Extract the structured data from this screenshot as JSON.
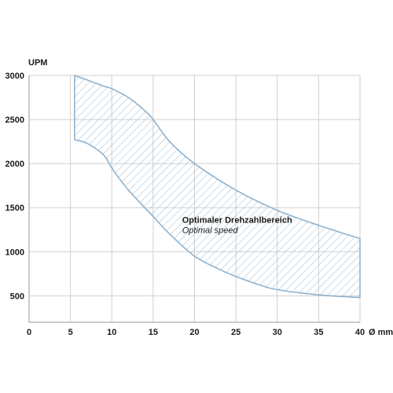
{
  "chart_data": {
    "type": "area",
    "title": "",
    "xlabel": "Ø mm",
    "ylabel": "UPM",
    "xlim": [
      0,
      40
    ],
    "ylim": [
      200,
      3000
    ],
    "x_ticks": [
      0,
      5,
      10,
      15,
      20,
      25,
      30,
      35,
      40
    ],
    "y_ticks": [
      500,
      1000,
      1500,
      2000,
      2500,
      3000
    ],
    "grid": true,
    "series": [
      {
        "role": "upper_bound",
        "x": [
          5.5,
          7,
          9,
          10,
          12,
          14,
          15,
          17,
          20,
          25,
          30,
          35,
          40
        ],
        "values": [
          3000,
          2950,
          2880,
          2850,
          2750,
          2600,
          2500,
          2250,
          2000,
          1700,
          1470,
          1300,
          1150
        ]
      },
      {
        "role": "lower_bound",
        "x": [
          5.5,
          7,
          9,
          10,
          12,
          15,
          17,
          20,
          23,
          25,
          28,
          30,
          35,
          40
        ],
        "values": [
          2270,
          2230,
          2100,
          1950,
          1700,
          1400,
          1200,
          950,
          800,
          720,
          620,
          570,
          510,
          480
        ]
      }
    ],
    "band_color": "#8fb2ce",
    "annotation": {
      "label": "Optimaler Drehzahlbereich",
      "sublabel": "Optimal speed",
      "x": 18.5,
      "y": 1330
    }
  }
}
